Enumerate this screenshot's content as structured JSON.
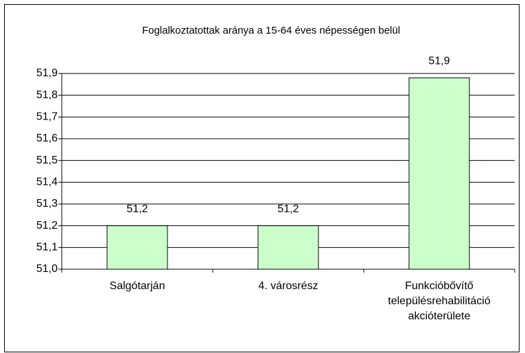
{
  "chart_data": {
    "type": "bar",
    "title": "Foglalkoztatottak aránya a 15-64 éves népességen belül",
    "categories": [
      "Salgótarján",
      "4. városrész",
      "Funkcióbővítő településrehabilitáció akcióterülete"
    ],
    "values": [
      51.2,
      51.2,
      51.88
    ],
    "value_labels": [
      "51,2",
      "51,2",
      "51,9"
    ],
    "color": "#ccffcc",
    "ylim": [
      51.0,
      51.9
    ],
    "yticks": [
      {
        "value": 51.0,
        "label": "51,0"
      },
      {
        "value": 51.1,
        "label": "51,1"
      },
      {
        "value": 51.2,
        "label": "51,2"
      },
      {
        "value": 51.3,
        "label": "51,3"
      },
      {
        "value": 51.4,
        "label": "51,4"
      },
      {
        "value": 51.5,
        "label": "51,5"
      },
      {
        "value": 51.6,
        "label": "51,6"
      },
      {
        "value": 51.7,
        "label": "51,7"
      },
      {
        "value": 51.8,
        "label": "51,8"
      },
      {
        "value": 51.9,
        "label": "51,9"
      }
    ],
    "grid": true
  }
}
